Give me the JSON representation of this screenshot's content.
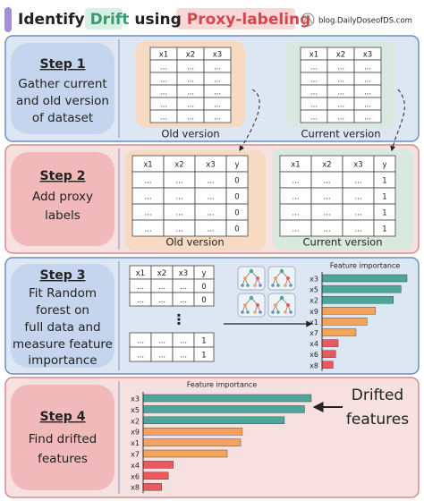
{
  "header": {
    "title": [
      "Identify",
      "Drift",
      "using",
      "Proxy-labeling"
    ],
    "site": "blog.DailyDoseofDS.com"
  },
  "steps": [
    {
      "title": "Step 1",
      "text": [
        "Gather current",
        "and old version",
        "of dataset"
      ],
      "tables": [
        {
          "header": [
            "x1",
            "x2",
            "x3"
          ],
          "rows": [
            [
              "...",
              "...",
              "..."
            ],
            [
              "...",
              "...",
              "..."
            ],
            [
              "...",
              "...",
              "..."
            ],
            [
              "...",
              "...",
              "..."
            ],
            [
              "...",
              "...",
              "..."
            ]
          ]
        },
        {
          "header": [
            "x1",
            "x2",
            "x3"
          ],
          "rows": [
            [
              "...",
              "...",
              "..."
            ],
            [
              "...",
              "...",
              "..."
            ],
            [
              "...",
              "...",
              "..."
            ],
            [
              "...",
              "...",
              "..."
            ],
            [
              "...",
              "...",
              "..."
            ]
          ]
        }
      ],
      "captions": [
        "Old version",
        "Current version"
      ]
    },
    {
      "title": "Step 2",
      "text": [
        "Add proxy",
        "labels"
      ],
      "tables": [
        {
          "header": [
            "x1",
            "x2",
            "x3",
            "y"
          ],
          "rows": [
            [
              "...",
              "...",
              "...",
              "0"
            ],
            [
              "...",
              "...",
              "...",
              "0"
            ],
            [
              "...",
              "...",
              "...",
              "0"
            ],
            [
              "...",
              "...",
              "...",
              "0"
            ]
          ]
        },
        {
          "header": [
            "x1",
            "x2",
            "x3",
            "y"
          ],
          "rows": [
            [
              "...",
              "...",
              "...",
              "1"
            ],
            [
              "...",
              "...",
              "...",
              "1"
            ],
            [
              "...",
              "...",
              "...",
              "1"
            ],
            [
              "...",
              "...",
              "...",
              "1"
            ]
          ]
        }
      ],
      "captions": [
        "Old version",
        "Current version"
      ]
    },
    {
      "title": "Step 3",
      "text": [
        "Fit Random",
        "forest on",
        "full data and",
        "measure feature",
        "importance"
      ],
      "tables": [
        {
          "header": [
            "x1",
            "x2",
            "x3",
            "y"
          ],
          "rows": [
            [
              "...",
              "...",
              "...",
              "0"
            ],
            [
              "...",
              "...",
              "...",
              "0"
            ]
          ]
        },
        {
          "rows": [
            [
              "...",
              "...",
              "...",
              "1"
            ],
            [
              "...",
              "...",
              "...",
              "1"
            ]
          ]
        }
      ],
      "ellipsis": "⋮",
      "chart": {
        "type": "bar",
        "orientation": "horizontal",
        "title": "Feature importance",
        "categories": [
          "x3",
          "x5",
          "x2",
          "x9",
          "x1",
          "x7",
          "x4",
          "x6",
          "x8"
        ],
        "values": [
          100,
          93,
          84,
          63,
          53,
          40,
          19,
          16,
          13
        ],
        "colors": [
          "#4ea69a",
          "#4ea69a",
          "#4ea69a",
          "#f2a55a",
          "#f2a55a",
          "#f2a55a",
          "#e85a5e",
          "#e85a5e",
          "#e85a5e"
        ]
      }
    },
    {
      "title": "Step 4",
      "text": [
        "Find drifted",
        "features"
      ],
      "chart": {
        "type": "bar",
        "orientation": "horizontal",
        "title": "Feature importance",
        "categories": [
          "x3",
          "x5",
          "x2",
          "x9",
          "x1",
          "x7",
          "x4",
          "x6",
          "x8"
        ],
        "values": [
          100,
          96,
          84,
          59,
          58,
          50,
          18,
          15,
          11
        ],
        "colors": [
          "#4ea69a",
          "#4ea69a",
          "#4ea69a",
          "#f2a55a",
          "#f2a55a",
          "#f2a55a",
          "#e85a5e",
          "#e85a5e",
          "#e85a5e"
        ]
      },
      "callout": [
        "Drifted",
        "features"
      ]
    }
  ]
}
